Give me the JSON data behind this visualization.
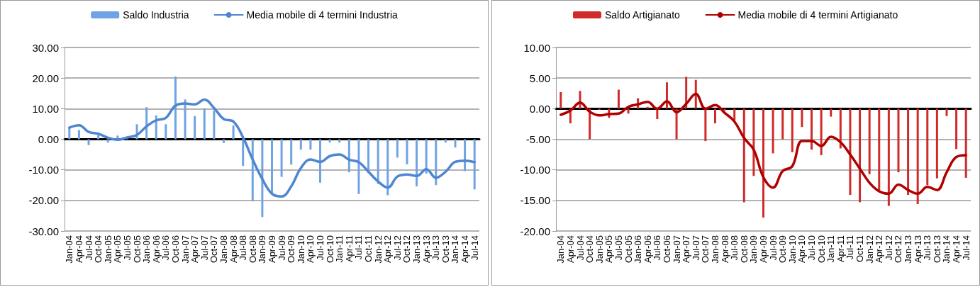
{
  "chart_data": [
    {
      "type": "bar",
      "categories": [
        "Jan-04",
        "Apr-04",
        "Jul-04",
        "Oct-04",
        "Jan-05",
        "Apr-05",
        "Jul-05",
        "Oct-05",
        "Jan-06",
        "Apr-06",
        "Jul-06",
        "Oct-06",
        "Jan-07",
        "Apr-07",
        "Jul-07",
        "Oct-07",
        "Jan-08",
        "Apr-08",
        "Jul-08",
        "Oct-08",
        "Jan-09",
        "Apr-09",
        "Jul-09",
        "Oct-09",
        "Jan-10",
        "Apr-10",
        "Jul-10",
        "Oct-10",
        "Jan-11",
        "Apr-11",
        "Jul-11",
        "Oct-11",
        "Jan-12",
        "Apr-12",
        "Jul-12",
        "Oct-12",
        "Jan-13",
        "Apr-13",
        "Jul-13",
        "Oct-13",
        "Jan-14",
        "Apr-14",
        "Jul-14"
      ],
      "series": [
        {
          "name": "Saldo Industria",
          "color": "#6fa3e3",
          "values": [
            3.8,
            3.0,
            -1.9,
            1.4,
            -1.1,
            1.2,
            0.2,
            4.9,
            10.5,
            7.8,
            4.9,
            20.5,
            13.0,
            7.6,
            10.1,
            9.4,
            -1.2,
            4.5,
            -8.7,
            -20.3,
            -25.4,
            -17.8,
            -12.3,
            -8.3,
            -3.4,
            -3.4,
            -14.2,
            -1.1,
            -1.1,
            -10.8,
            -17.9,
            -11.1,
            -14.6,
            -18.3,
            -6.0,
            -8.2,
            -15.4,
            -11.2,
            -15.0,
            -1.1,
            -2.7,
            -10.4,
            -16.4
          ]
        },
        {
          "name": "Media mobile di 4 termini Industria",
          "type": "line",
          "color": "#4f86d0",
          "values": [
            3.8,
            4.6,
            2.4,
            1.8,
            0.5,
            -0.2,
            0.6,
            1.4,
            4.2,
            6.2,
            7.0,
            11.0,
            11.7,
            11.4,
            13.0,
            10.2,
            6.6,
            5.8,
            0.6,
            -6.6,
            -13.0,
            -17.8,
            -18.7,
            -15.4,
            -9.4,
            -6.6,
            -7.4,
            -5.5,
            -5.0,
            -6.7,
            -7.5,
            -10.6,
            -13.8,
            -15.8,
            -12.2,
            -11.5,
            -12.0,
            -9.8,
            -12.6,
            -10.6,
            -7.4,
            -7.0,
            -7.5
          ]
        }
      ],
      "ylim": [
        -30,
        30
      ],
      "yticks": [
        {
          "value": -30,
          "label": "-30.00"
        },
        {
          "value": -20,
          "label": "-20.00"
        },
        {
          "value": -10,
          "label": "-10.00"
        },
        {
          "value": 0,
          "label": "0.00"
        },
        {
          "value": 10,
          "label": "10.00"
        },
        {
          "value": 20,
          "label": "20.00"
        },
        {
          "value": 30,
          "label": "30.00"
        }
      ],
      "grid": "y",
      "legend": "top",
      "marker": "none"
    },
    {
      "type": "bar",
      "categories": [
        "Jan-04",
        "Apr-04",
        "Jul-04",
        "Oct-04",
        "Jan-05",
        "Apr-05",
        "Jul-05",
        "Oct-05",
        "Jan-06",
        "Apr-06",
        "Jul-06",
        "Oct-06",
        "Jan-07",
        "Apr-07",
        "Jul-07",
        "Oct-07",
        "Jan-08",
        "Apr-08",
        "Jul-08",
        "Oct-08",
        "Jan-09",
        "Apr-09",
        "Jul-09",
        "Oct-09",
        "Jan-10",
        "Apr-10",
        "Jul-10",
        "Oct-10",
        "Jan-11",
        "Apr-11",
        "Jul-11",
        "Oct-11",
        "Jan-12",
        "Apr-12",
        "Jul-12",
        "Oct-12",
        "Jan-13",
        "Apr-13",
        "Jul-13",
        "Oct-13",
        "Jan-14",
        "Apr-14",
        "Jul-14"
      ],
      "series": [
        {
          "name": "Saldo Artigianato",
          "color": "#d02a2a",
          "values": [
            2.7,
            -2.4,
            2.9,
            -5.0,
            -0.2,
            -1.5,
            3.1,
            -0.8,
            1.7,
            0.3,
            -1.7,
            4.3,
            -5.0,
            5.2,
            4.7,
            -5.3,
            -2.4,
            -0.3,
            -1.9,
            -15.3,
            -11.0,
            -17.8,
            -7.3,
            -5.0,
            -7.1,
            -3.0,
            -6.7,
            -7.6,
            -1.3,
            -6.5,
            -14.1,
            -15.3,
            -10.7,
            -13.3,
            -15.9,
            -10.4,
            -14.1,
            -15.6,
            -12.5,
            -11.4,
            -1.2,
            -6.6,
            -11.3
          ]
        },
        {
          "name": "Media mobile di 4 termini Artigianato",
          "type": "line",
          "color": "#b00000",
          "values": [
            -1.0,
            -0.3,
            1.0,
            -0.5,
            -1.1,
            -0.9,
            -0.8,
            0.3,
            0.7,
            1.1,
            0.0,
            1.2,
            -0.6,
            0.8,
            2.4,
            0.0,
            0.6,
            -0.7,
            -2.1,
            -4.8,
            -6.7,
            -11.2,
            -12.9,
            -10.2,
            -9.4,
            -5.3,
            -5.3,
            -6.1,
            -4.6,
            -5.5,
            -7.5,
            -9.8,
            -12.1,
            -13.5,
            -13.9,
            -12.4,
            -13.3,
            -13.9,
            -12.8,
            -13.3,
            -10.4,
            -7.9,
            -7.6
          ]
        }
      ],
      "ylim": [
        -20,
        10
      ],
      "yticks": [
        {
          "value": -20,
          "label": "-20.00"
        },
        {
          "value": -15,
          "label": "-15.00"
        },
        {
          "value": -10,
          "label": "-10.00"
        },
        {
          "value": -5,
          "label": "-5.00"
        },
        {
          "value": 0,
          "label": "0.00"
        },
        {
          "value": 5,
          "label": "5.00"
        },
        {
          "value": 10,
          "label": "10.00"
        }
      ],
      "grid": "y",
      "legend": "top",
      "marker": "none"
    }
  ]
}
